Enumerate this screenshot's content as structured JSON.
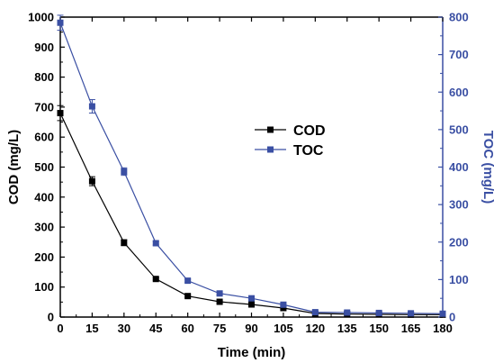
{
  "chart_data": {
    "type": "line",
    "title": "",
    "xlabel": "Time (min)",
    "ylabel_left": "COD (mg/L)",
    "ylabel_right": "TOC (mg/L)",
    "xlim": [
      0,
      180
    ],
    "ylim_left": [
      0,
      1000
    ],
    "ylim_right": [
      0,
      800
    ],
    "x_ticks": [
      0,
      15,
      30,
      45,
      60,
      75,
      90,
      105,
      120,
      135,
      150,
      165,
      180
    ],
    "y_left_ticks": [
      0,
      100,
      200,
      300,
      400,
      500,
      600,
      700,
      800,
      900,
      1000
    ],
    "y_right_ticks": [
      0,
      100,
      200,
      300,
      400,
      500,
      600,
      700,
      800
    ],
    "grid": false,
    "legend_position": "center-right",
    "series": [
      {
        "name": "COD",
        "axis": "left",
        "color": "#000000",
        "marker": "square",
        "x": [
          0,
          15,
          30,
          45,
          60,
          75,
          90,
          105,
          120,
          135,
          150,
          165,
          180
        ],
        "y": [
          680,
          453,
          248,
          127,
          70,
          51,
          42,
          30,
          12,
          10,
          9,
          8,
          8
        ],
        "error": [
          25,
          15,
          10,
          4,
          4,
          3,
          3,
          3,
          2,
          2,
          2,
          2,
          2
        ]
      },
      {
        "name": "TOC",
        "axis": "right",
        "color": "#3a4fa3",
        "marker": "square",
        "x": [
          0,
          15,
          30,
          45,
          60,
          75,
          90,
          105,
          120,
          135,
          150,
          165,
          180
        ],
        "y": [
          785,
          562,
          388,
          197,
          97,
          63,
          50,
          33,
          13,
          12,
          11,
          10,
          9
        ],
        "error": [
          20,
          18,
          10,
          5,
          4,
          4,
          4,
          3,
          3,
          3,
          3,
          3,
          3
        ]
      }
    ]
  }
}
